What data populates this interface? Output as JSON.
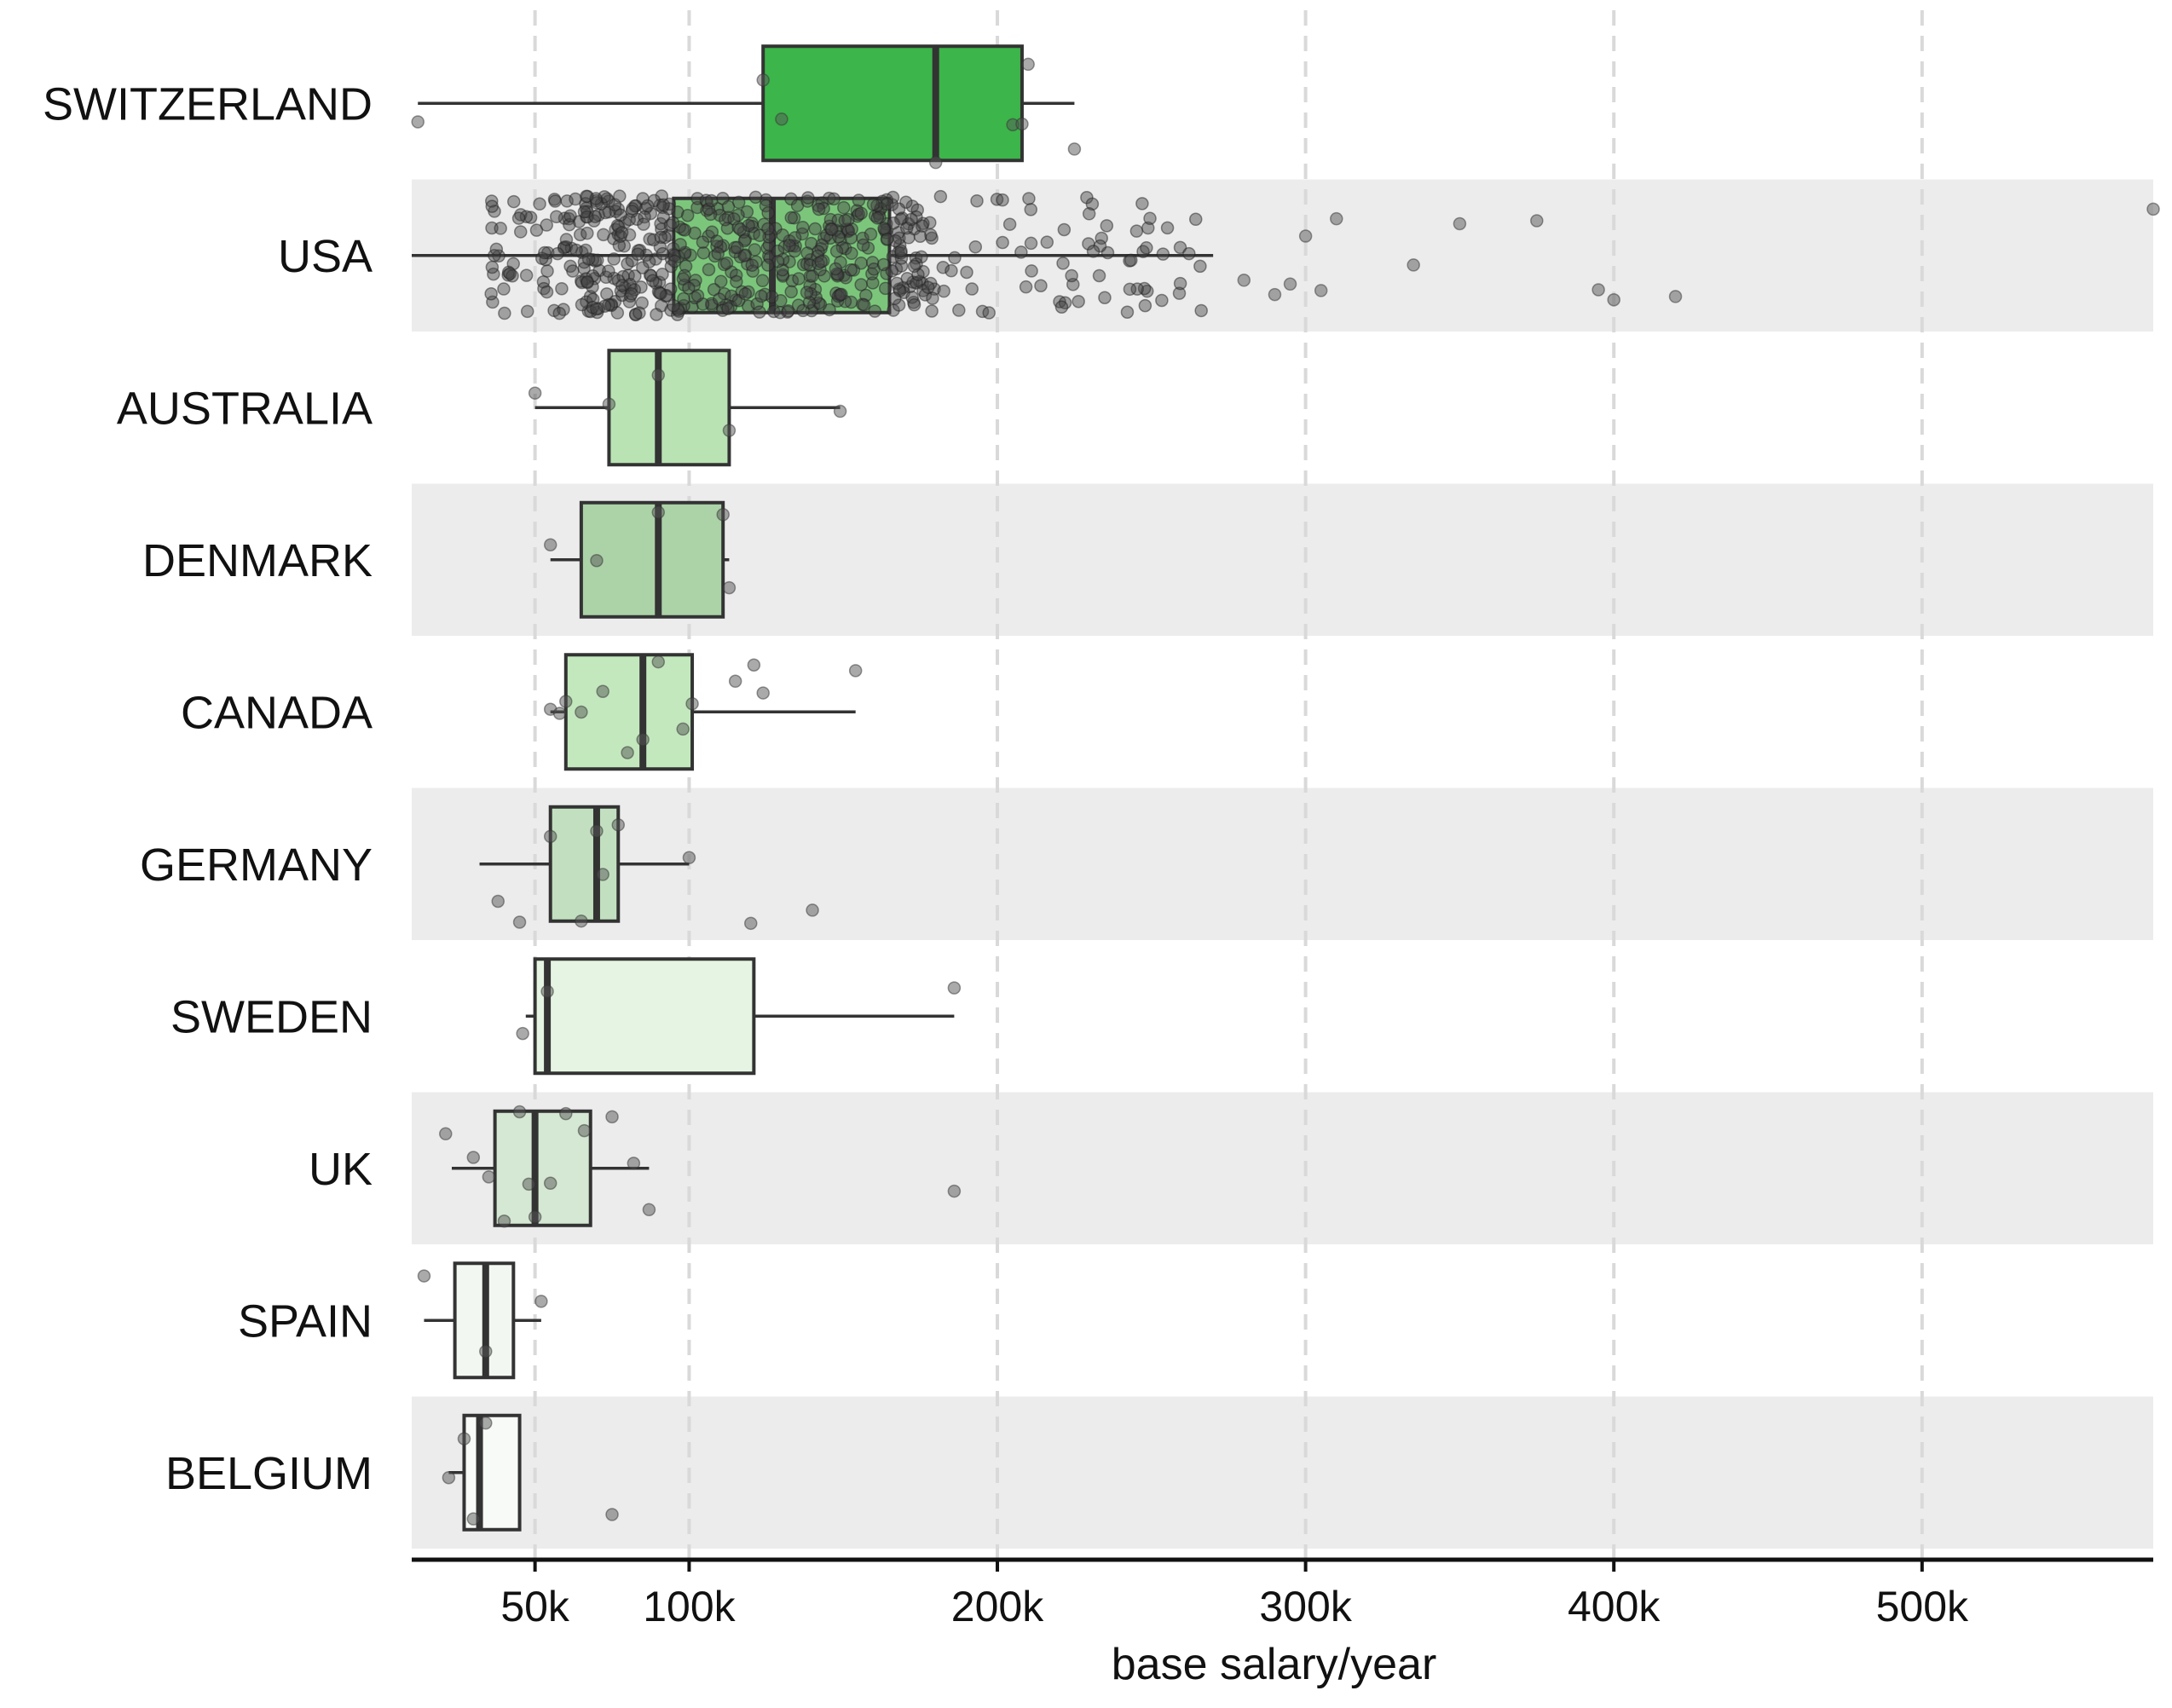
{
  "chart_data": {
    "type": "box",
    "title": "",
    "xlabel": "base salary/year",
    "ylabel": "",
    "xlim": [
      10000,
      575000
    ],
    "x_ticks": [
      50000,
      100000,
      200000,
      300000,
      400000,
      500000
    ],
    "x_tick_labels": [
      "50k",
      "100k",
      "200k",
      "300k",
      "400k",
      "500k"
    ],
    "grid": "vertical dashed at ticks",
    "row_banding": "alternating light gray",
    "categories": [
      "SWITZERLAND",
      "USA",
      "AUSTRALIA",
      "DENMARK",
      "CANADA",
      "GERMANY",
      "SWEDEN",
      "UK",
      "SPAIN",
      "BELGIUM"
    ],
    "boxes": [
      {
        "category": "SWITZERLAND",
        "whisker_low": 12000,
        "q1": 124000,
        "median": 180000,
        "q3": 208000,
        "whisker_high": 225000,
        "color": "#3cb54a",
        "points": [
          12000,
          124000,
          130000,
          180000,
          205000,
          208000,
          210000,
          225000
        ]
      },
      {
        "category": "USA",
        "whisker_low": 10000,
        "q1": 95000,
        "median": 127000,
        "q3": 165000,
        "whisker_high": 270000,
        "color": "#7cc67c",
        "outliers": [
          280000,
          290000,
          295000,
          300000,
          305000,
          310000,
          335000,
          350000,
          375000,
          395000,
          400000,
          420000,
          575000
        ]
      },
      {
        "category": "AUSTRALIA",
        "whisker_low": 50000,
        "q1": 74000,
        "median": 90000,
        "q3": 113000,
        "whisker_high": 149000,
        "color": "#b9e3b3",
        "points": [
          50000,
          74000,
          90000,
          113000,
          149000
        ]
      },
      {
        "category": "DENMARK",
        "whisker_low": 55000,
        "q1": 65000,
        "median": 90000,
        "q3": 111000,
        "whisker_high": 113000,
        "color": "#acd3a8",
        "points": [
          55000,
          70000,
          90000,
          111000,
          113000
        ]
      },
      {
        "category": "CANADA",
        "whisker_low": 55000,
        "q1": 60000,
        "median": 85000,
        "q3": 101000,
        "whisker_high": 154000,
        "color": "#c3e8bd",
        "points": [
          55000,
          58000,
          60000,
          65000,
          72000,
          80000,
          85000,
          90000,
          98000,
          101000,
          115000,
          121000,
          124000,
          154000
        ]
      },
      {
        "category": "GERMANY",
        "whisker_low": 32000,
        "q1": 55000,
        "median": 70000,
        "q3": 77000,
        "whisker_high": 100000,
        "color": "#c2e0c0",
        "outliers": [
          120000,
          140000
        ],
        "points": [
          38000,
          45000,
          55000,
          65000,
          70000,
          72000,
          77000,
          100000
        ]
      },
      {
        "category": "SWEDEN",
        "whisker_low": 47000,
        "q1": 50000,
        "median": 54000,
        "q3": 121000,
        "whisker_high": 186000,
        "color": "#e6f5e3",
        "points": [
          46000,
          54000,
          186000
        ]
      },
      {
        "category": "UK",
        "whisker_low": 23000,
        "q1": 37000,
        "median": 50000,
        "q3": 68000,
        "whisker_high": 87000,
        "color": "#d5e8d3",
        "outliers": [
          186000
        ],
        "points": [
          21000,
          30000,
          35000,
          40000,
          45000,
          48000,
          50000,
          55000,
          60000,
          66000,
          75000,
          82000,
          87000
        ]
      },
      {
        "category": "SPAIN",
        "whisker_low": 14000,
        "q1": 24000,
        "median": 34000,
        "q3": 43000,
        "whisker_high": 52000,
        "color": "#f2f8f1",
        "points": [
          14000,
          34000,
          52000
        ]
      },
      {
        "category": "BELGIUM",
        "whisker_low": 22000,
        "q1": 27000,
        "median": 32000,
        "q3": 45000,
        "whisker_high": 45000,
        "color": "#f7faf6",
        "outliers": [
          75000
        ],
        "points": [
          22000,
          27000,
          30000,
          34000
        ]
      }
    ]
  }
}
